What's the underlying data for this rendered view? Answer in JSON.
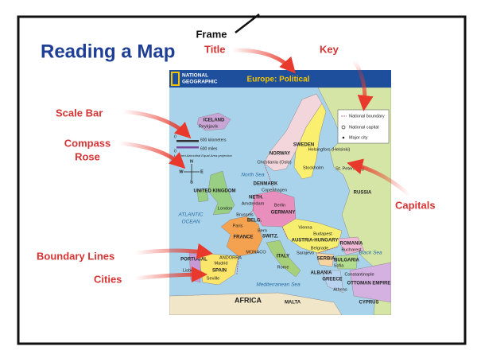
{
  "slide": {
    "frame_label": "Frame",
    "title": "Reading a Map",
    "callouts": [
      "Title",
      "Key",
      "Scale Bar",
      "Compass",
      "Rose",
      "Capitals",
      "Boundary Lines",
      "Cities"
    ]
  },
  "map": {
    "publisher": [
      "NATIONAL",
      "GEOGRAPHIC"
    ],
    "title": "Europe: Political",
    "key": [
      "National boundary",
      "National capital",
      "Major city"
    ],
    "scale": [
      "0",
      "600 kilometers",
      "0",
      "600 miles",
      "Lambert Azimuthal Equal-Area projection"
    ],
    "compass": [
      "N",
      "E",
      "S",
      "W"
    ],
    "places": [
      "ICELAND",
      "Reykjavík",
      "NORWAY",
      "SWEDEN",
      "Christiania (Oslo)",
      "Stockholm",
      "Helsingfors (Helsinki)",
      "St. Petersburg",
      "RUSSIA",
      "North Sea",
      "DENMARK",
      "Copenhagen",
      "UNITED KINGDOM",
      "London",
      "NETH.",
      "Amsterdam",
      "Berlin",
      "GERMANY",
      "Brussels",
      "BELG.",
      "Paris",
      "FRANCE",
      "Bern",
      "SWITZ.",
      "Vienna",
      "AUSTRIA-HUNGARY",
      "Budapest",
      "ROMANIA",
      "Bucharest",
      "Belgrade",
      "SERBIA",
      "ITALY",
      "Rome",
      "Black Sea",
      "BULGARIA",
      "Sofia",
      "Constantinople",
      "OTTOMAN EMPIRE",
      "GREECE",
      "Athens",
      "Mediterranean Sea",
      "AFRICA",
      "PORTUGAL",
      "Lisbon",
      "SPAIN",
      "Madrid",
      "Seville",
      "ANDORRA",
      "MONACO",
      "ATLANTIC",
      "OCEAN",
      "MALTA",
      "CYPRUS",
      "Sarajevo",
      "ALBANIA"
    ]
  }
}
